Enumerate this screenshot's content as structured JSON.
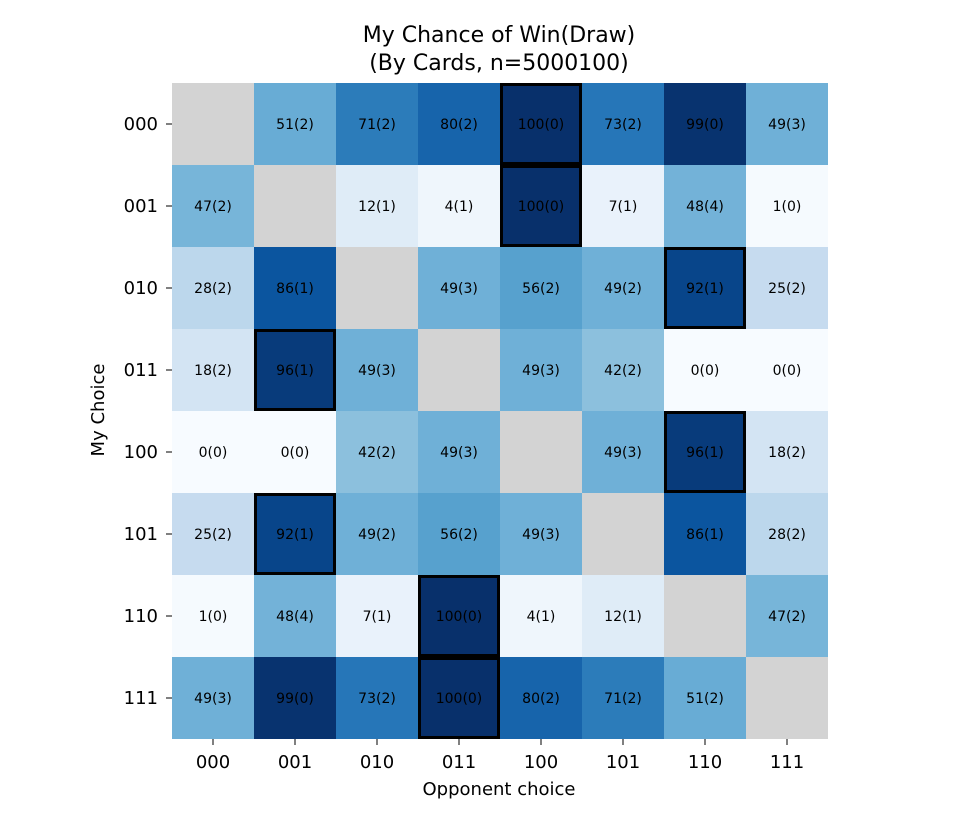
{
  "chart_data": {
    "type": "heatmap",
    "title": "My Chance of Win(Draw)",
    "subtitle": "(By Cards, n=5000100)",
    "xlabel": "Opponent choice",
    "ylabel": "My Choice",
    "x_categories": [
      "000",
      "001",
      "010",
      "011",
      "100",
      "101",
      "110",
      "111"
    ],
    "y_categories": [
      "000",
      "001",
      "010",
      "011",
      "100",
      "101",
      "110",
      "111"
    ],
    "win": [
      [
        null,
        51,
        71,
        80,
        100,
        73,
        99,
        49
      ],
      [
        47,
        null,
        12,
        4,
        100,
        7,
        48,
        1
      ],
      [
        28,
        86,
        null,
        49,
        56,
        49,
        92,
        25
      ],
      [
        18,
        96,
        49,
        null,
        49,
        42,
        0,
        0
      ],
      [
        0,
        0,
        42,
        49,
        null,
        49,
        96,
        18
      ],
      [
        25,
        92,
        49,
        56,
        49,
        null,
        86,
        28
      ],
      [
        1,
        48,
        7,
        100,
        4,
        12,
        null,
        47
      ],
      [
        49,
        99,
        73,
        100,
        80,
        71,
        51,
        null
      ]
    ],
    "draw": [
      [
        null,
        2,
        2,
        2,
        0,
        2,
        0,
        3
      ],
      [
        2,
        null,
        1,
        1,
        0,
        1,
        4,
        0
      ],
      [
        2,
        1,
        null,
        3,
        2,
        2,
        1,
        2
      ],
      [
        2,
        1,
        3,
        null,
        3,
        2,
        0,
        0
      ],
      [
        0,
        0,
        2,
        3,
        null,
        3,
        1,
        2
      ],
      [
        2,
        1,
        2,
        2,
        3,
        null,
        1,
        2
      ],
      [
        0,
        4,
        1,
        0,
        1,
        1,
        null,
        2
      ],
      [
        3,
        0,
        2,
        0,
        2,
        2,
        2,
        null
      ]
    ],
    "highlighted_cells": [
      [
        0,
        4
      ],
      [
        1,
        4
      ],
      [
        2,
        6
      ],
      [
        3,
        1
      ],
      [
        4,
        6
      ],
      [
        5,
        1
      ],
      [
        6,
        3
      ],
      [
        7,
        3
      ]
    ],
    "colormap": "Blues",
    "missing_color": "#d3d3d3",
    "value_range": [
      0,
      100
    ],
    "grid": false,
    "legend": "none"
  }
}
